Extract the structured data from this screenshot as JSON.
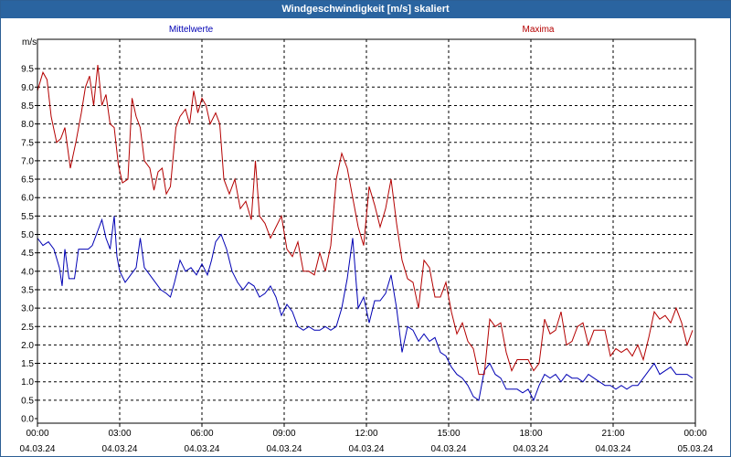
{
  "title": "Windgeschwindigkeit [m/s] skaliert",
  "chart_data": {
    "type": "line",
    "ylabel": "m/s",
    "ylim": [
      0,
      10
    ],
    "yticks": [
      "0.0",
      "0.5",
      "1.0",
      "1.5",
      "2.0",
      "2.5",
      "3.0",
      "3.5",
      "4.0",
      "4.5",
      "5.0",
      "5.5",
      "6.0",
      "6.5",
      "7.0",
      "7.5",
      "8.0",
      "8.5",
      "9.0",
      "9.5"
    ],
    "xlim": [
      0,
      24
    ],
    "xticks": [
      {
        "x": 0,
        "time": "00:00",
        "date": "04.03.24"
      },
      {
        "x": 3,
        "time": "03:00",
        "date": "04.03.24"
      },
      {
        "x": 6,
        "time": "06:00",
        "date": "04.03.24"
      },
      {
        "x": 9,
        "time": "09:00",
        "date": "04.03.24"
      },
      {
        "x": 12,
        "time": "12:00",
        "date": "04.03.24"
      },
      {
        "x": 15,
        "time": "15:00",
        "date": "04.03.24"
      },
      {
        "x": 18,
        "time": "18:00",
        "date": "04.03.24"
      },
      {
        "x": 21,
        "time": "21:00",
        "date": "04.03.24"
      },
      {
        "x": 24,
        "time": "00:00",
        "date": "05.03.24"
      }
    ],
    "grid": true,
    "series": [
      {
        "name": "Mittelwerte",
        "color": "#0000b4",
        "points": [
          [
            0,
            4.9
          ],
          [
            0.2,
            4.7
          ],
          [
            0.4,
            4.8
          ],
          [
            0.6,
            4.6
          ],
          [
            0.8,
            4.1
          ],
          [
            0.9,
            3.6
          ],
          [
            1.0,
            4.6
          ],
          [
            1.15,
            3.8
          ],
          [
            1.35,
            3.8
          ],
          [
            1.5,
            4.6
          ],
          [
            1.7,
            4.6
          ],
          [
            1.85,
            4.6
          ],
          [
            2.0,
            4.7
          ],
          [
            2.2,
            5.1
          ],
          [
            2.35,
            5.4
          ],
          [
            2.5,
            4.9
          ],
          [
            2.65,
            4.6
          ],
          [
            2.8,
            5.5
          ],
          [
            2.9,
            4.4
          ],
          [
            3.0,
            4.0
          ],
          [
            3.2,
            3.7
          ],
          [
            3.4,
            3.9
          ],
          [
            3.6,
            4.1
          ],
          [
            3.75,
            4.9
          ],
          [
            3.9,
            4.1
          ],
          [
            4.1,
            3.9
          ],
          [
            4.3,
            3.7
          ],
          [
            4.5,
            3.5
          ],
          [
            4.7,
            3.4
          ],
          [
            4.85,
            3.3
          ],
          [
            5.0,
            3.7
          ],
          [
            5.2,
            4.3
          ],
          [
            5.4,
            4.0
          ],
          [
            5.6,
            4.1
          ],
          [
            5.8,
            3.9
          ],
          [
            6.0,
            4.2
          ],
          [
            6.2,
            3.9
          ],
          [
            6.35,
            4.3
          ],
          [
            6.5,
            4.8
          ],
          [
            6.7,
            5.0
          ],
          [
            6.9,
            4.6
          ],
          [
            7.1,
            4.0
          ],
          [
            7.3,
            3.7
          ],
          [
            7.5,
            3.5
          ],
          [
            7.7,
            3.7
          ],
          [
            7.9,
            3.6
          ],
          [
            8.1,
            3.3
          ],
          [
            8.3,
            3.4
          ],
          [
            8.5,
            3.6
          ],
          [
            8.7,
            3.3
          ],
          [
            8.9,
            2.8
          ],
          [
            9.1,
            3.1
          ],
          [
            9.3,
            2.9
          ],
          [
            9.5,
            2.5
          ],
          [
            9.7,
            2.4
          ],
          [
            9.9,
            2.5
          ],
          [
            10.1,
            2.4
          ],
          [
            10.3,
            2.4
          ],
          [
            10.5,
            2.5
          ],
          [
            10.7,
            2.4
          ],
          [
            10.9,
            2.5
          ],
          [
            11.1,
            3.0
          ],
          [
            11.3,
            3.8
          ],
          [
            11.5,
            4.9
          ],
          [
            11.7,
            3.0
          ],
          [
            11.9,
            3.3
          ],
          [
            12.1,
            2.6
          ],
          [
            12.3,
            3.2
          ],
          [
            12.5,
            3.2
          ],
          [
            12.7,
            3.4
          ],
          [
            12.9,
            3.9
          ],
          [
            13.1,
            3.0
          ],
          [
            13.3,
            1.8
          ],
          [
            13.5,
            2.5
          ],
          [
            13.7,
            2.4
          ],
          [
            13.9,
            2.1
          ],
          [
            14.1,
            2.3
          ],
          [
            14.3,
            2.1
          ],
          [
            14.5,
            2.2
          ],
          [
            14.7,
            1.8
          ],
          [
            14.9,
            1.7
          ],
          [
            15.1,
            1.4
          ],
          [
            15.3,
            1.2
          ],
          [
            15.5,
            1.1
          ],
          [
            15.7,
            0.9
          ],
          [
            15.9,
            0.6
          ],
          [
            16.1,
            0.5
          ],
          [
            16.3,
            1.3
          ],
          [
            16.5,
            1.5
          ],
          [
            16.7,
            1.2
          ],
          [
            16.9,
            1.1
          ],
          [
            17.1,
            0.8
          ],
          [
            17.3,
            0.8
          ],
          [
            17.5,
            0.8
          ],
          [
            17.7,
            0.7
          ],
          [
            17.9,
            0.8
          ],
          [
            18.1,
            0.5
          ],
          [
            18.3,
            0.9
          ],
          [
            18.5,
            1.2
          ],
          [
            18.7,
            1.1
          ],
          [
            18.9,
            1.2
          ],
          [
            19.1,
            1.0
          ],
          [
            19.3,
            1.2
          ],
          [
            19.5,
            1.1
          ],
          [
            19.7,
            1.1
          ],
          [
            19.9,
            1.0
          ],
          [
            20.1,
            1.2
          ],
          [
            20.3,
            1.1
          ],
          [
            20.5,
            1.0
          ],
          [
            20.7,
            0.9
          ],
          [
            20.9,
            0.9
          ],
          [
            21.1,
            0.8
          ],
          [
            21.3,
            0.9
          ],
          [
            21.5,
            0.8
          ],
          [
            21.7,
            0.9
          ],
          [
            21.9,
            0.9
          ],
          [
            22.1,
            1.1
          ],
          [
            22.3,
            1.3
          ],
          [
            22.5,
            1.5
          ],
          [
            22.7,
            1.2
          ],
          [
            22.9,
            1.3
          ],
          [
            23.1,
            1.4
          ],
          [
            23.3,
            1.2
          ],
          [
            23.5,
            1.2
          ],
          [
            23.7,
            1.2
          ],
          [
            23.9,
            1.1
          ]
        ]
      },
      {
        "name": "Maxima",
        "color": "#b40000",
        "points": [
          [
            0,
            8.9
          ],
          [
            0.2,
            9.4
          ],
          [
            0.35,
            9.2
          ],
          [
            0.5,
            8.2
          ],
          [
            0.7,
            7.5
          ],
          [
            0.85,
            7.6
          ],
          [
            1.0,
            7.9
          ],
          [
            1.2,
            6.8
          ],
          [
            1.4,
            7.5
          ],
          [
            1.6,
            8.3
          ],
          [
            1.75,
            9.0
          ],
          [
            1.9,
            9.3
          ],
          [
            2.05,
            8.5
          ],
          [
            2.2,
            9.6
          ],
          [
            2.35,
            8.5
          ],
          [
            2.5,
            8.8
          ],
          [
            2.65,
            8.0
          ],
          [
            2.8,
            7.9
          ],
          [
            2.95,
            6.9
          ],
          [
            3.1,
            6.4
          ],
          [
            3.3,
            6.5
          ],
          [
            3.45,
            8.7
          ],
          [
            3.6,
            8.2
          ],
          [
            3.75,
            7.9
          ],
          [
            3.9,
            7.0
          ],
          [
            4.1,
            6.8
          ],
          [
            4.25,
            6.2
          ],
          [
            4.4,
            6.7
          ],
          [
            4.55,
            6.8
          ],
          [
            4.7,
            6.1
          ],
          [
            4.85,
            6.3
          ],
          [
            5.05,
            7.9
          ],
          [
            5.2,
            8.2
          ],
          [
            5.4,
            8.4
          ],
          [
            5.55,
            8.0
          ],
          [
            5.7,
            8.9
          ],
          [
            5.85,
            8.3
          ],
          [
            6.0,
            8.7
          ],
          [
            6.15,
            8.5
          ],
          [
            6.3,
            8.0
          ],
          [
            6.5,
            8.3
          ],
          [
            6.65,
            8.0
          ],
          [
            6.8,
            6.5
          ],
          [
            7.0,
            6.1
          ],
          [
            7.2,
            6.5
          ],
          [
            7.4,
            5.7
          ],
          [
            7.6,
            5.9
          ],
          [
            7.8,
            5.4
          ],
          [
            7.95,
            7.0
          ],
          [
            8.1,
            5.5
          ],
          [
            8.3,
            5.3
          ],
          [
            8.5,
            4.9
          ],
          [
            8.7,
            5.2
          ],
          [
            8.9,
            5.5
          ],
          [
            9.1,
            4.6
          ],
          [
            9.3,
            4.4
          ],
          [
            9.5,
            4.8
          ],
          [
            9.7,
            4.0
          ],
          [
            9.9,
            4.0
          ],
          [
            10.1,
            3.9
          ],
          [
            10.3,
            4.5
          ],
          [
            10.5,
            4.0
          ],
          [
            10.7,
            4.7
          ],
          [
            10.9,
            6.5
          ],
          [
            11.1,
            7.2
          ],
          [
            11.3,
            6.8
          ],
          [
            11.5,
            6.0
          ],
          [
            11.7,
            5.2
          ],
          [
            11.9,
            4.7
          ],
          [
            12.1,
            6.3
          ],
          [
            12.3,
            5.8
          ],
          [
            12.5,
            5.2
          ],
          [
            12.7,
            5.7
          ],
          [
            12.9,
            6.5
          ],
          [
            13.1,
            5.3
          ],
          [
            13.3,
            4.3
          ],
          [
            13.5,
            3.8
          ],
          [
            13.7,
            3.7
          ],
          [
            13.9,
            3.0
          ],
          [
            14.1,
            4.3
          ],
          [
            14.3,
            4.1
          ],
          [
            14.5,
            3.3
          ],
          [
            14.7,
            3.3
          ],
          [
            14.9,
            3.7
          ],
          [
            15.1,
            2.9
          ],
          [
            15.3,
            2.3
          ],
          [
            15.5,
            2.6
          ],
          [
            15.7,
            2.1
          ],
          [
            15.9,
            1.9
          ],
          [
            16.1,
            1.2
          ],
          [
            16.3,
            1.2
          ],
          [
            16.5,
            2.7
          ],
          [
            16.7,
            2.5
          ],
          [
            16.9,
            2.6
          ],
          [
            17.1,
            1.8
          ],
          [
            17.3,
            1.3
          ],
          [
            17.5,
            1.6
          ],
          [
            17.7,
            1.6
          ],
          [
            17.9,
            1.6
          ],
          [
            18.1,
            1.3
          ],
          [
            18.3,
            1.5
          ],
          [
            18.5,
            2.7
          ],
          [
            18.7,
            2.3
          ],
          [
            18.9,
            2.4
          ],
          [
            19.1,
            2.9
          ],
          [
            19.3,
            2.0
          ],
          [
            19.5,
            2.1
          ],
          [
            19.7,
            2.5
          ],
          [
            19.9,
            2.6
          ],
          [
            20.1,
            2.0
          ],
          [
            20.3,
            2.4
          ],
          [
            20.5,
            2.4
          ],
          [
            20.7,
            2.4
          ],
          [
            20.9,
            1.7
          ],
          [
            21.1,
            1.9
          ],
          [
            21.3,
            1.8
          ],
          [
            21.5,
            1.9
          ],
          [
            21.7,
            1.7
          ],
          [
            21.9,
            2.0
          ],
          [
            22.1,
            1.6
          ],
          [
            22.3,
            2.2
          ],
          [
            22.5,
            2.9
          ],
          [
            22.7,
            2.7
          ],
          [
            22.9,
            2.8
          ],
          [
            23.1,
            2.6
          ],
          [
            23.3,
            3.0
          ],
          [
            23.5,
            2.6
          ],
          [
            23.7,
            2.0
          ],
          [
            23.9,
            2.4
          ]
        ]
      }
    ]
  }
}
